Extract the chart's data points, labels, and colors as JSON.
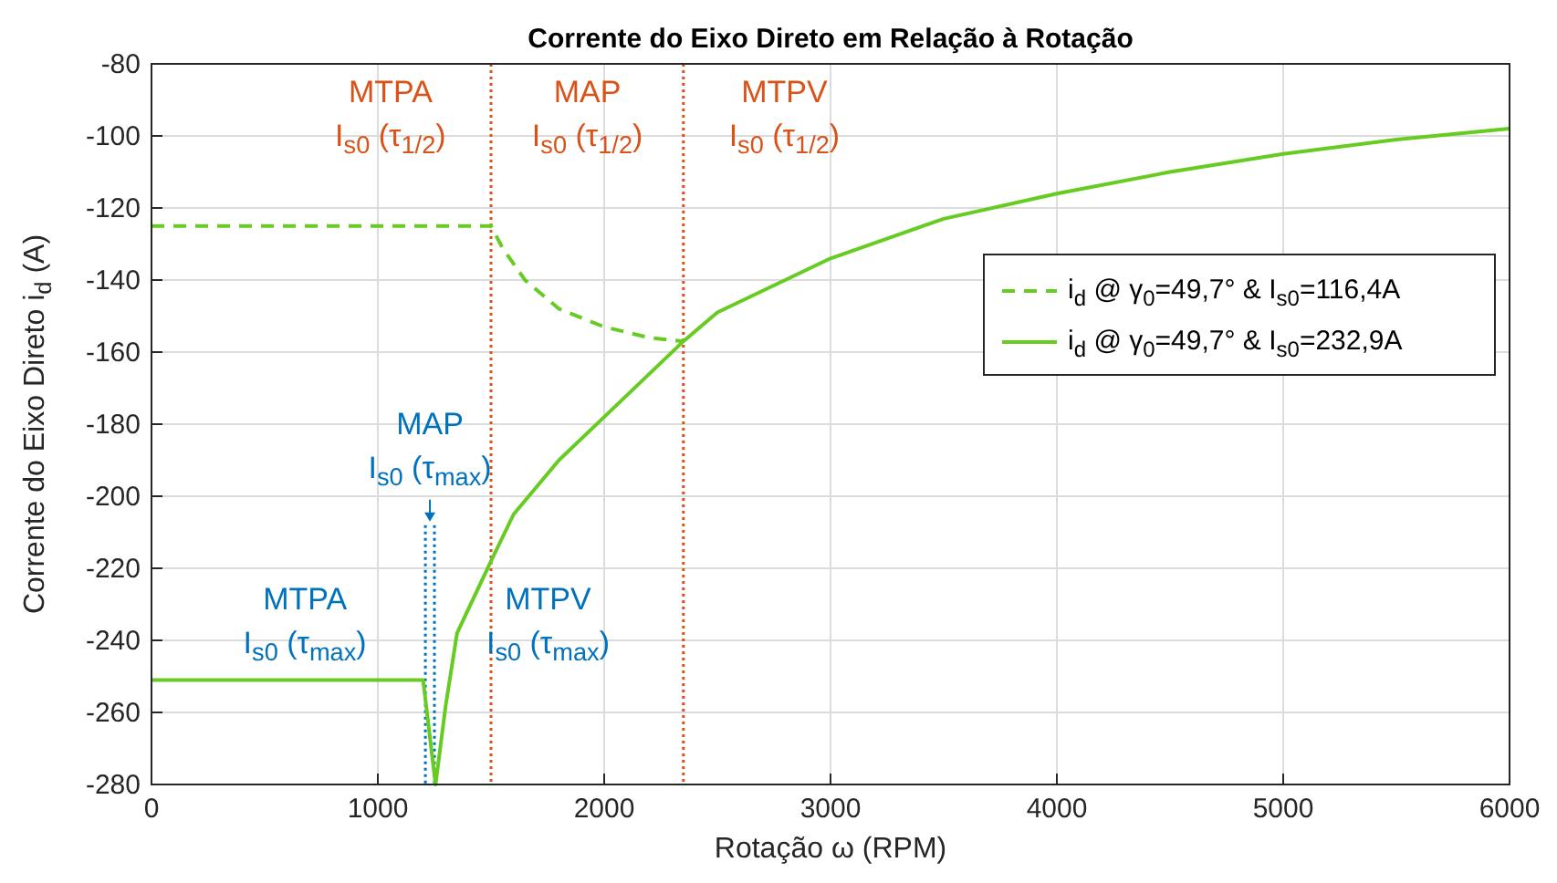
{
  "chart_data": {
    "type": "line",
    "title": "Corrente do Eixo Direto em Relação à Rotação",
    "xlabel": "Rotação ω (RPM)",
    "ylabel": "Corrente do Eixo Direto i$_{d}$ (A)",
    "series": [
      {
        "name": "i$_{d}$ @ γ$_{0}$=49,7° & I$_{s0}$=116,4A",
        "color": "#66cc22",
        "line_style": "dashed",
        "x": [
          0,
          1500,
          1550,
          1650,
          1800,
          2000,
          2200,
          2350
        ],
        "values": [
          -125,
          -125,
          -131,
          -140,
          -148,
          -153,
          -156,
          -157
        ]
      },
      {
        "name": "i$_{d}$ @ γ$_{0}$=49,7° & I$_{s0}$=232,9A",
        "color": "#66cc22",
        "line_style": "solid",
        "x": [
          0,
          1200,
          1255,
          1300,
          1350,
          1500,
          1600,
          1800,
          2000,
          2350,
          2500,
          3000,
          3500,
          4000,
          4500,
          5000,
          5500,
          6000
        ],
        "values": [
          -251,
          -251,
          -280,
          -258,
          -238,
          -218,
          -205,
          -190,
          -178,
          -157,
          -149,
          -134,
          -123,
          -116,
          -110,
          -105,
          -101,
          -98
        ]
      }
    ],
    "xlim": [
      0,
      6000
    ],
    "xticks": [
      0,
      1000,
      2000,
      3000,
      4000,
      5000,
      6000
    ],
    "ylim": [
      -280,
      -80
    ],
    "yticks": [
      -280,
      -260,
      -240,
      -220,
      -200,
      -180,
      -160,
      -140,
      -120,
      -100,
      -80
    ],
    "grid": true,
    "legend": "right",
    "ref_lines": [
      {
        "axis": "x",
        "value": 1500,
        "color": "#d95319",
        "line_style": "dotted"
      },
      {
        "axis": "x",
        "value": 2350,
        "color": "#d95319",
        "line_style": "dotted"
      },
      {
        "axis": "x",
        "value": 1210,
        "color": "#0072bd",
        "line_style": "dotted"
      },
      {
        "axis": "x",
        "value": 1250,
        "color": "#0072bd",
        "line_style": "dotted"
      }
    ],
    "annotations": [
      "MTPA\nI$_{s0}$ (τ$_{1/2}$)",
      "MAP\nI$_{s0}$ (τ$_{1/2}$)",
      "MTPV\nI$_{s0}$ (τ$_{1/2}$)",
      "MAP\nI$_{s0}$ (τ$_{max}$)",
      "MTPA\nI$_{s0}$ (τ$_{max}$)",
      "MTPV\nI$_{s0}$ (τ$_{max}$)"
    ]
  }
}
